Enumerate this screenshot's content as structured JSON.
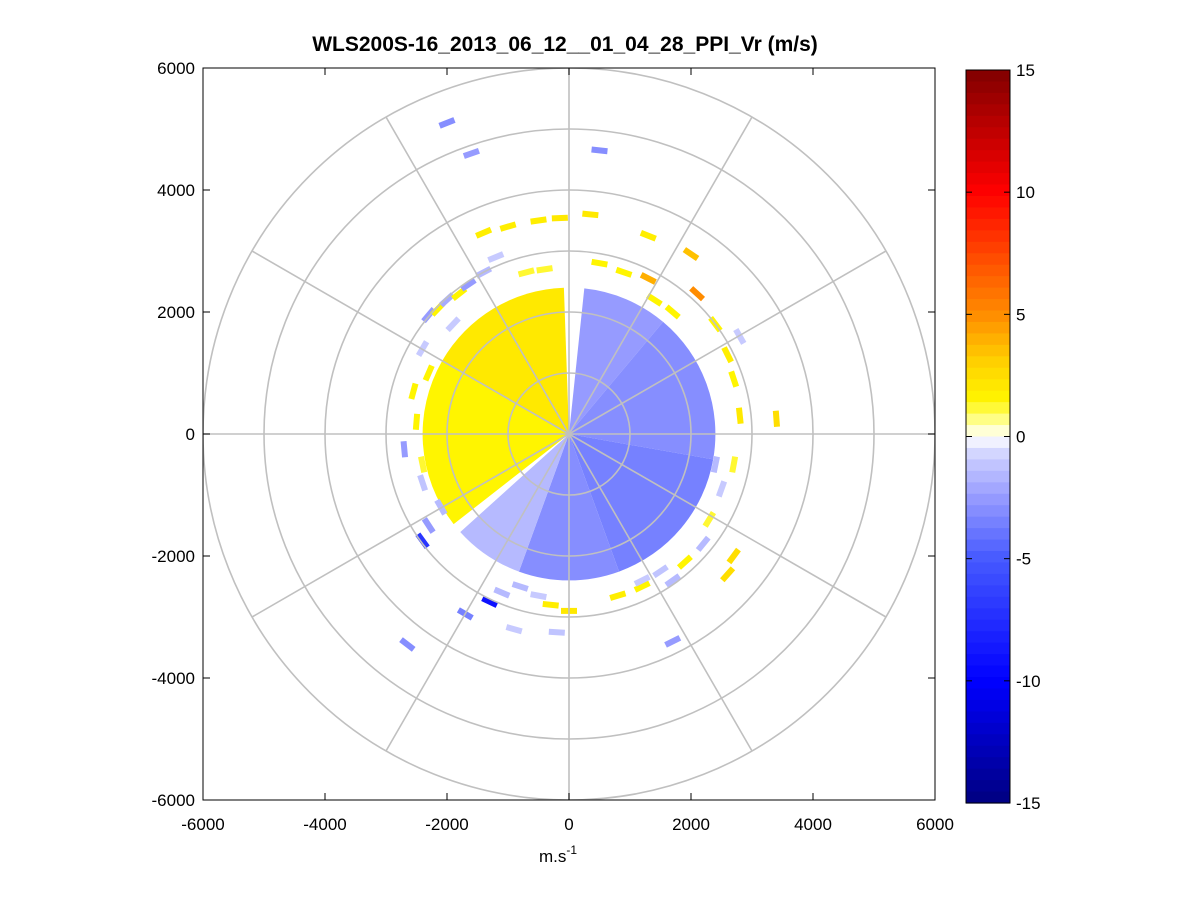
{
  "chart_data": {
    "type": "polar-ppi",
    "title": "WLS200S-16_2013_06_12__01_04_28_PPI_Vr (m/s)",
    "xlabel": {
      "base": "m.s",
      "superscript": "-1"
    },
    "ylabel": "",
    "xlim": [
      -6000,
      6000
    ],
    "ylim": [
      -6000,
      6000
    ],
    "xticks": [
      -6000,
      -4000,
      -2000,
      0,
      2000,
      4000,
      6000
    ],
    "yticks": [
      6000,
      4000,
      2000,
      0,
      -2000,
      -4000,
      -6000
    ],
    "xtick_labels": [
      "-6000",
      "-4000",
      "-2000",
      "0",
      "2000",
      "4000",
      "6000"
    ],
    "ytick_labels": [
      "6000",
      "4000",
      "2000",
      "0",
      "-2000",
      "-4000",
      "-6000"
    ],
    "range_rings_m": [
      1000,
      2000,
      3000,
      4000,
      5000,
      6000
    ],
    "spoke_angles_deg": [
      0,
      30,
      60,
      90,
      120,
      150,
      180,
      210,
      240,
      270,
      300,
      330
    ],
    "grid_color": "#c0c0c0",
    "colorbar": {
      "limits": [
        -15,
        15
      ],
      "ticks": [
        15,
        10,
        5,
        0,
        -5,
        -10,
        -15
      ],
      "tick_labels": [
        "15",
        "10",
        "5",
        "0",
        "-5",
        "-10",
        "-15"
      ],
      "colormap": "jet-like diverging, white at 0"
    },
    "inner_field": {
      "max_range_m": 2400,
      "sectors": [
        {
          "from_deg": 0,
          "to_deg": 6,
          "value": 0
        },
        {
          "from_deg": 6,
          "to_deg": 40,
          "value": -2.5
        },
        {
          "from_deg": 40,
          "to_deg": 100,
          "value": -3
        },
        {
          "from_deg": 100,
          "to_deg": 160,
          "value": -3.5
        },
        {
          "from_deg": 160,
          "to_deg": 200,
          "value": -3
        },
        {
          "from_deg": 200,
          "to_deg": 228,
          "value": -1.5
        },
        {
          "from_deg": 228,
          "to_deg": 232,
          "value": 0
        },
        {
          "from_deg": 232,
          "to_deg": 300,
          "value": 1.5
        },
        {
          "from_deg": 300,
          "to_deg": 358,
          "value": 2
        }
      ],
      "gap_deg": [
        358,
        360
      ]
    },
    "echo_points": [
      {
        "x": -1000,
        "y": 3400,
        "v": 1.8
      },
      {
        "x": -500,
        "y": 3500,
        "v": 1.8
      },
      {
        "x": -150,
        "y": 3540,
        "v": 2
      },
      {
        "x": 350,
        "y": 3600,
        "v": 2
      },
      {
        "x": -1400,
        "y": 3300,
        "v": 1.8
      },
      {
        "x": 1300,
        "y": 3250,
        "v": 1.8
      },
      {
        "x": 2000,
        "y": 2950,
        "v": 3.5
      },
      {
        "x": 2100,
        "y": 2300,
        "v": 5
      },
      {
        "x": 1300,
        "y": 2550,
        "v": 4
      },
      {
        "x": 500,
        "y": 2800,
        "v": 1.5
      },
      {
        "x": 900,
        "y": 2650,
        "v": 1.5
      },
      {
        "x": -400,
        "y": 2700,
        "v": 1.2
      },
      {
        "x": -700,
        "y": 2650,
        "v": 1.2
      },
      {
        "x": 1400,
        "y": 2200,
        "v": 1.5
      },
      {
        "x": 1700,
        "y": 2000,
        "v": 1.5
      },
      {
        "x": 2400,
        "y": 1800,
        "v": 1.5
      },
      {
        "x": 2600,
        "y": 1300,
        "v": 1.8
      },
      {
        "x": 2700,
        "y": 900,
        "v": 1.5
      },
      {
        "x": 2800,
        "y": 300,
        "v": 2
      },
      {
        "x": 3400,
        "y": 250,
        "v": 2.5
      },
      {
        "x": 2700,
        "y": -500,
        "v": 1.2
      },
      {
        "x": 2500,
        "y": -900,
        "v": -1
      },
      {
        "x": 2300,
        "y": -1400,
        "v": 1.2
      },
      {
        "x": 2700,
        "y": -2000,
        "v": 2.5
      },
      {
        "x": 2600,
        "y": -2300,
        "v": 2.5
      },
      {
        "x": 1900,
        "y": -2100,
        "v": 1.5
      },
      {
        "x": 1500,
        "y": -2250,
        "v": -1.2
      },
      {
        "x": 1200,
        "y": -2500,
        "v": 1.5
      },
      {
        "x": 800,
        "y": -2650,
        "v": 1.8
      },
      {
        "x": 1700,
        "y": -3400,
        "v": -2.5
      },
      {
        "x": 1700,
        "y": -2400,
        "v": -1.5
      },
      {
        "x": 2200,
        "y": -1800,
        "v": -1.5
      },
      {
        "x": 2400,
        "y": -500,
        "v": -1.5
      },
      {
        "x": 0,
        "y": -2900,
        "v": 2
      },
      {
        "x": -300,
        "y": -2800,
        "v": 1.8
      },
      {
        "x": -200,
        "y": -3250,
        "v": -1.2
      },
      {
        "x": -500,
        "y": -2650,
        "v": -1
      },
      {
        "x": -800,
        "y": -2500,
        "v": -1.5
      },
      {
        "x": -1100,
        "y": -2600,
        "v": -1.5
      },
      {
        "x": -1300,
        "y": -2750,
        "v": -9
      },
      {
        "x": -1700,
        "y": -2950,
        "v": -3.5
      },
      {
        "x": -2650,
        "y": -3450,
        "v": -3
      },
      {
        "x": -2400,
        "y": -1750,
        "v": -7
      },
      {
        "x": -2300,
        "y": -1500,
        "v": -2.5
      },
      {
        "x": -2100,
        "y": -1200,
        "v": -1.5
      },
      {
        "x": -2400,
        "y": -800,
        "v": -1.2
      },
      {
        "x": -2700,
        "y": -250,
        "v": -2.5
      },
      {
        "x": -2400,
        "y": -500,
        "v": 1.2
      },
      {
        "x": -2500,
        "y": 200,
        "v": 1.5
      },
      {
        "x": -2550,
        "y": 700,
        "v": 1.5
      },
      {
        "x": -2300,
        "y": 1000,
        "v": 1.5
      },
      {
        "x": -2400,
        "y": 1400,
        "v": -1
      },
      {
        "x": -2300,
        "y": 1950,
        "v": -2.5
      },
      {
        "x": -2150,
        "y": 2050,
        "v": 1.5
      },
      {
        "x": -2000,
        "y": 2200,
        "v": -2
      },
      {
        "x": -1800,
        "y": 2300,
        "v": 1.5
      },
      {
        "x": -1900,
        "y": 1800,
        "v": -1
      },
      {
        "x": -1650,
        "y": 2450,
        "v": -2.5
      },
      {
        "x": -1400,
        "y": 2650,
        "v": -1.5
      },
      {
        "x": -1200,
        "y": 2900,
        "v": -1
      },
      {
        "x": -1600,
        "y": 4600,
        "v": -2.5
      },
      {
        "x": -2000,
        "y": 5100,
        "v": -3
      },
      {
        "x": 500,
        "y": 4650,
        "v": -3
      },
      {
        "x": -900,
        "y": -3200,
        "v": -1
      },
      {
        "x": 1200,
        "y": -2400,
        "v": -1
      },
      {
        "x": 2800,
        "y": 1600,
        "v": -1
      }
    ]
  }
}
